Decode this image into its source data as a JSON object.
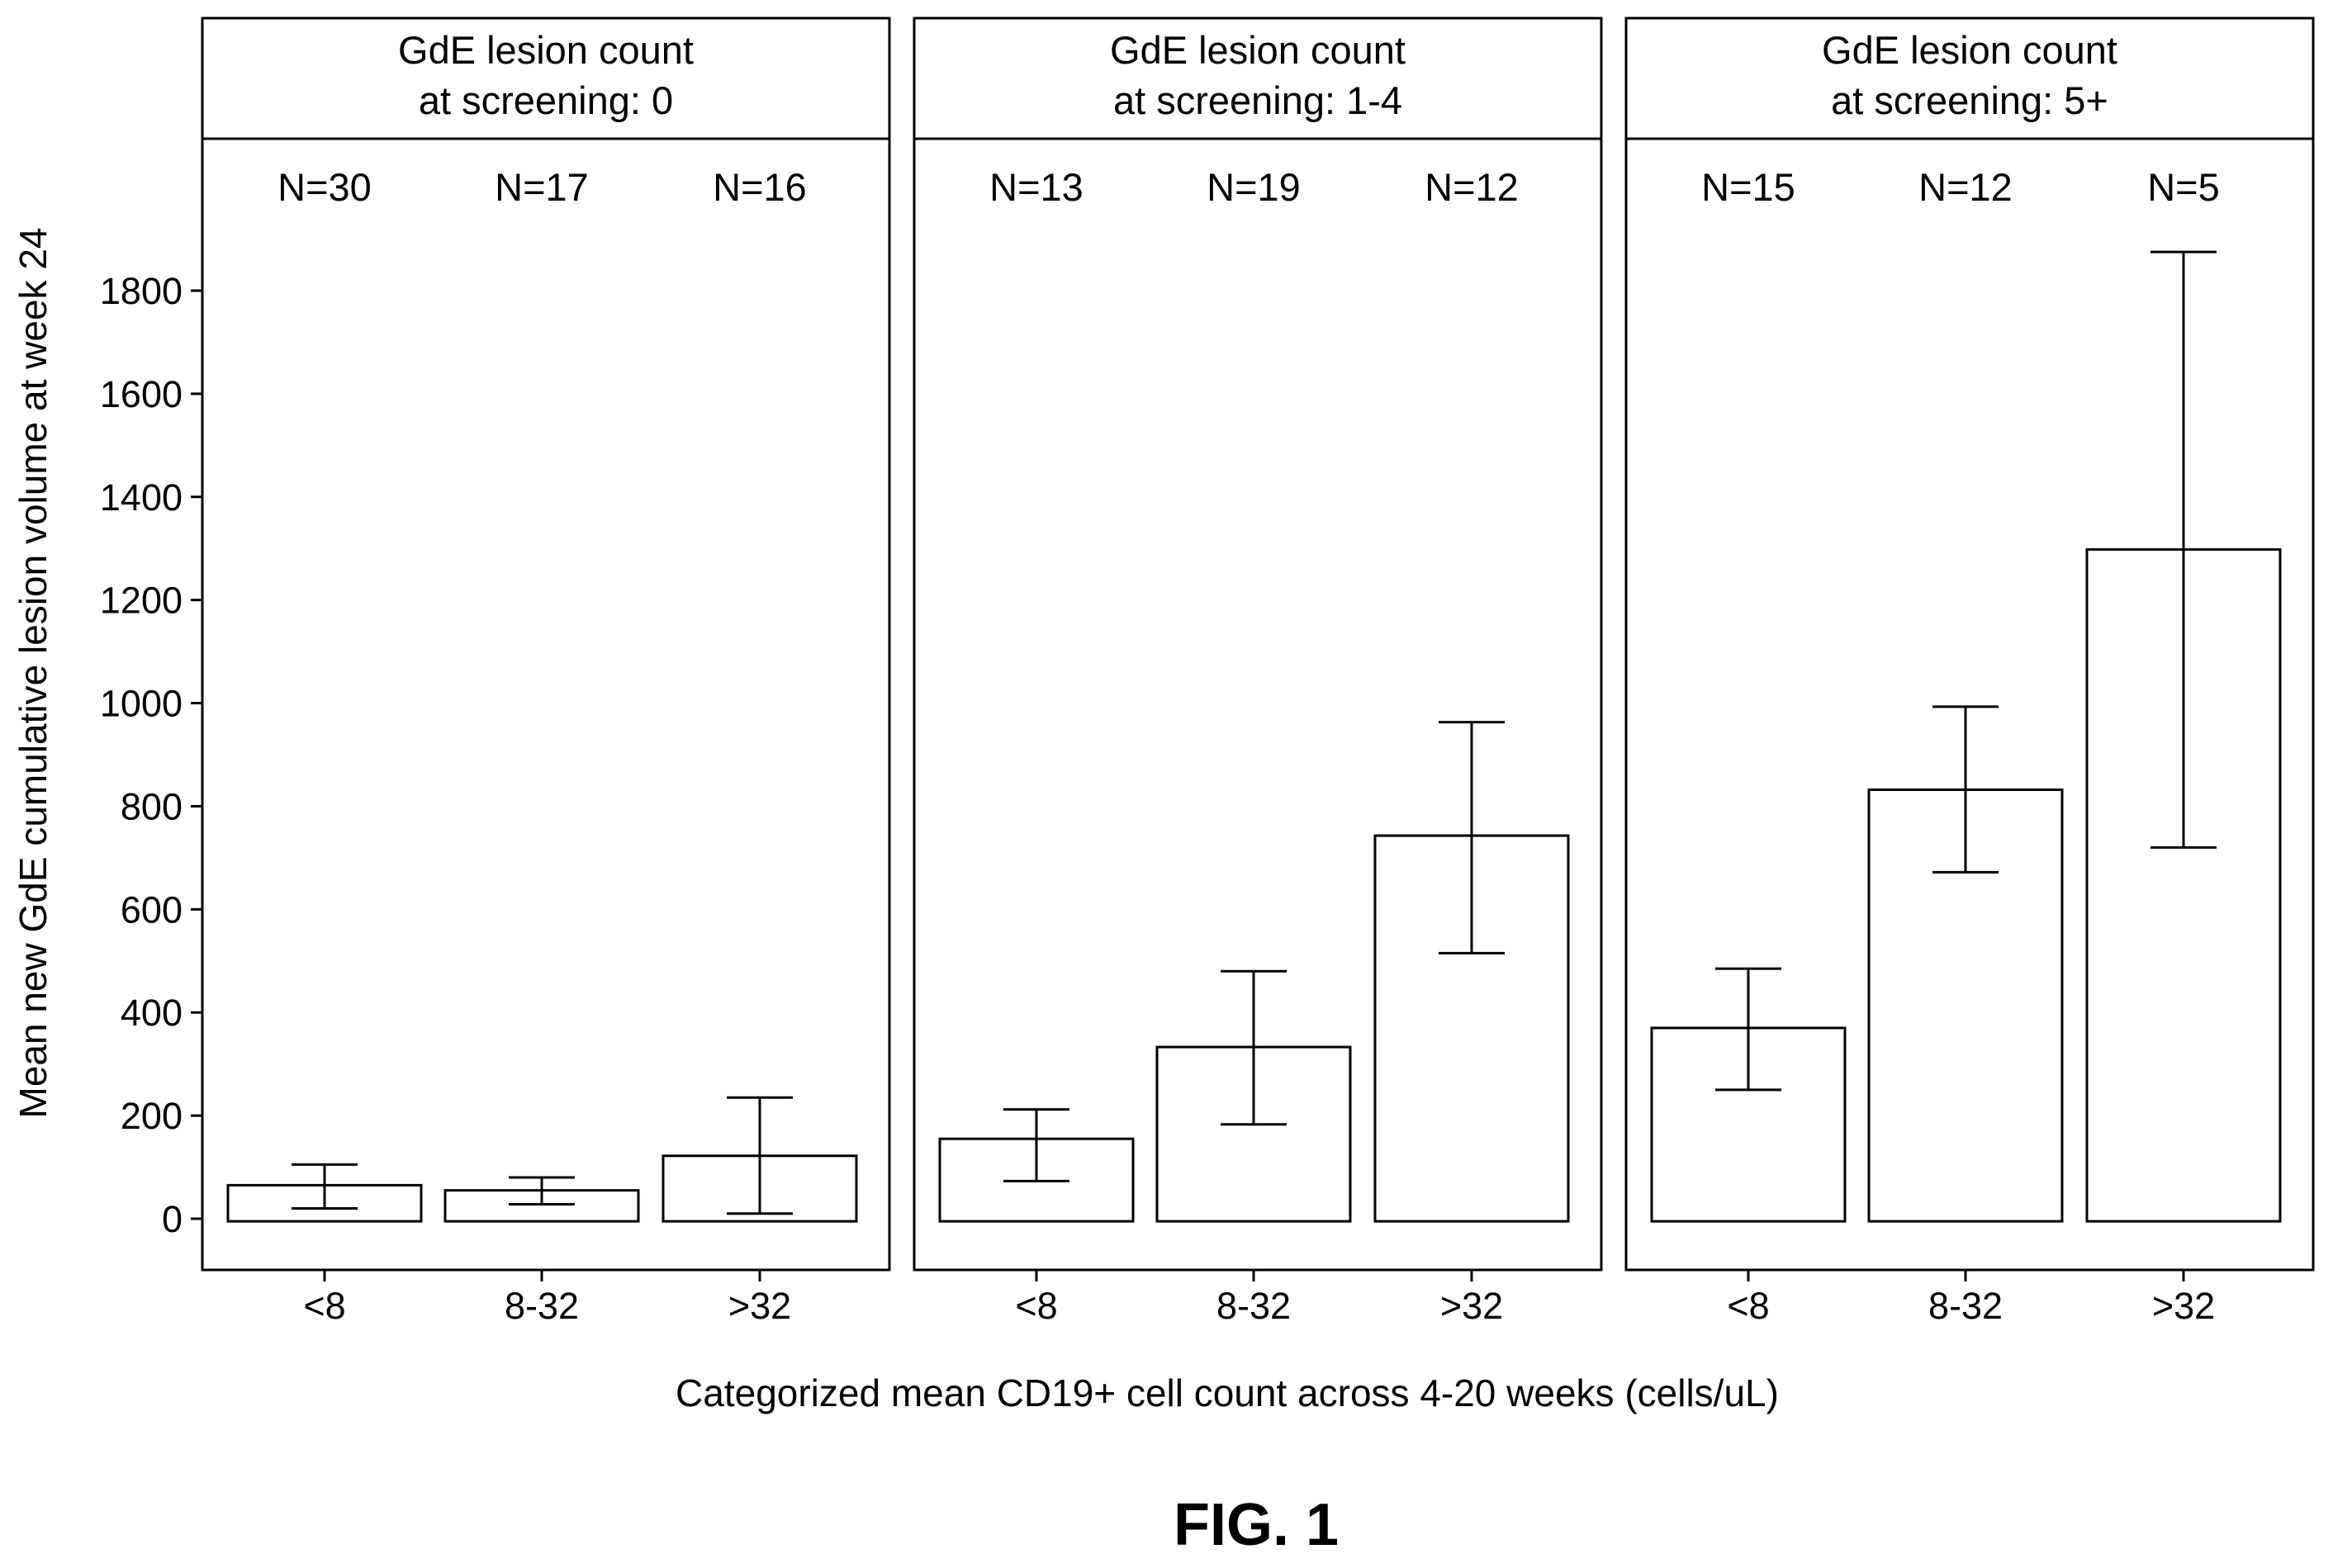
{
  "figure_label": "FIG. 1",
  "chart_data": {
    "type": "bar",
    "ylabel": "Mean new GdE cumulative lesion volume at week 24",
    "xlabel": "Categorized mean CD19+ cell count across 4-20 weeks (cells/uL)",
    "ylim": [
      -95,
      1930
    ],
    "yticks": [
      0,
      200,
      400,
      600,
      800,
      1000,
      1200,
      1400,
      1600,
      1800
    ],
    "grid": false,
    "categories": [
      "<8",
      "8-32",
      ">32"
    ],
    "panels": [
      {
        "title_line1": "GdE lesion count",
        "title_line2": "at screening: 0",
        "n_labels": [
          "N=30",
          "N=17",
          "N=16"
        ],
        "values": [
          65,
          55,
          122
        ],
        "err_low": [
          20,
          28,
          10
        ],
        "err_high": [
          105,
          80,
          235
        ]
      },
      {
        "title_line1": "GdE lesion count",
        "title_line2": "at screening: 1-4",
        "n_labels": [
          "N=13",
          "N=19",
          "N=12"
        ],
        "values": [
          155,
          333,
          743
        ],
        "err_low": [
          73,
          183,
          515
        ],
        "err_high": [
          212,
          480,
          963
        ]
      },
      {
        "title_line1": "GdE lesion count",
        "title_line2": "at screening: 5+",
        "n_labels": [
          "N=15",
          "N=12",
          "N=5"
        ],
        "values": [
          370,
          832,
          1298
        ],
        "err_low": [
          250,
          672,
          720
        ],
        "err_high": [
          485,
          993,
          1875
        ]
      }
    ],
    "colors": {
      "bar_fill": "#ffffff",
      "bar_stroke": "#000000",
      "axis": "#000000"
    }
  }
}
